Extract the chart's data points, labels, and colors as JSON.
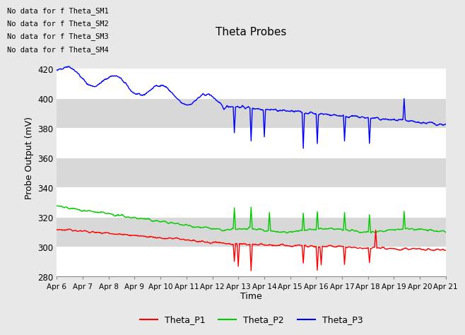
{
  "title": "Theta Probes",
  "xlabel": "Time",
  "ylabel": "Probe Output (mV)",
  "ylim": [
    280,
    440
  ],
  "yticks": [
    280,
    300,
    320,
    340,
    360,
    380,
    400,
    420
  ],
  "xstart": 6,
  "xend": 21,
  "xtick_labels": [
    "Apr 6",
    "Apr 7",
    "Apr 8",
    "Apr 9",
    "Apr 10",
    "Apr 11",
    "Apr 12",
    "Apr 13",
    "Apr 14",
    "Apr 15",
    "Apr 16",
    "Apr 17",
    "Apr 18",
    "Apr 19",
    "Apr 20",
    "Apr 21"
  ],
  "bg_color": "#e8e8e8",
  "plot_bg_color": "#e8e8e8",
  "grid_color": "#ffffff",
  "alt_band_color": "#d8d8d8",
  "no_data_texts": [
    "No data for f Theta_SM1",
    "No data for f Theta_SM2",
    "No data for f Theta_SM3",
    "No data for f Theta_SM4"
  ],
  "legend_labels": [
    "Theta_P1",
    "Theta_P2",
    "Theta_P3"
  ],
  "legend_colors": [
    "#ff0000",
    "#00cc00",
    "#0000ff"
  ],
  "line_width": 1.0
}
